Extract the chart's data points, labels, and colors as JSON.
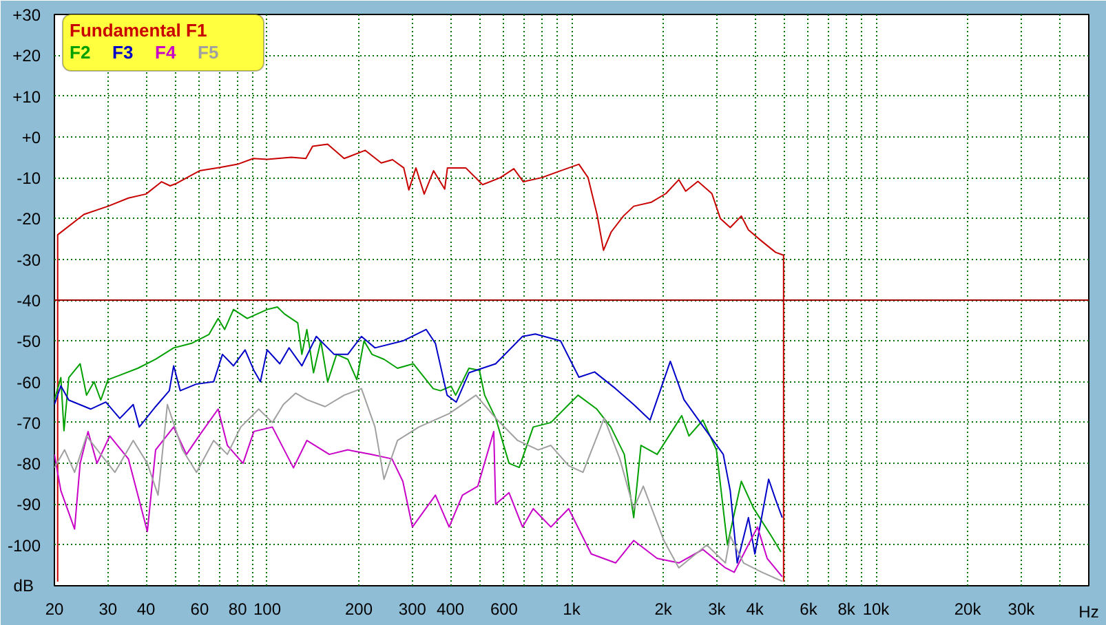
{
  "chart_data": {
    "type": "line",
    "xlabel": "Hz",
    "ylabel": "dB",
    "log": "x",
    "grid": true,
    "legend": "top left",
    "xlim": [
      20,
      50000
    ],
    "ylim": [
      -110,
      30
    ],
    "xticks": [
      20,
      30,
      40,
      {
        "value": 50,
        "label": null
      },
      60,
      {
        "value": 70,
        "label": null
      },
      80,
      {
        "value": 90,
        "label": null
      },
      100,
      200,
      300,
      400,
      {
        "value": 500,
        "label": null
      },
      600,
      {
        "value": 700,
        "label": null
      },
      {
        "value": 800,
        "label": null
      },
      {
        "value": 900,
        "label": null
      },
      {
        "value": 1000,
        "label": "1k"
      },
      {
        "value": 2000,
        "label": "2k"
      },
      {
        "value": 3000,
        "label": "3k"
      },
      {
        "value": 4000,
        "label": "4k"
      },
      {
        "value": 5000,
        "label": null
      },
      {
        "value": 6000,
        "label": "6k"
      },
      {
        "value": 7000,
        "label": null
      },
      {
        "value": 8000,
        "label": "8k"
      },
      {
        "value": 9000,
        "label": null
      },
      {
        "value": 10000,
        "label": "10k"
      },
      {
        "value": 20000,
        "label": "20k"
      },
      {
        "value": 30000,
        "label": "30k"
      },
      {
        "value": 40000,
        "label": null
      }
    ],
    "yticks": [
      {
        "value": 30,
        "label": "+30"
      },
      {
        "value": 20,
        "label": "+20"
      },
      {
        "value": 10,
        "label": "+10"
      },
      {
        "value": 0,
        "label": "+0"
      },
      -10,
      -20,
      -30,
      -40,
      -50,
      -60,
      -70,
      -80,
      -90,
      -100
    ],
    "ref_lines": [
      {
        "axis": "y",
        "value": -40,
        "label": null,
        "color": "#a00000"
      }
    ],
    "series": [
      {
        "name": "Fundamental F1",
        "color": "#c80000",
        "x": [
          20.5,
          20.5,
          25,
          30,
          35,
          40,
          45,
          48,
          50,
          60,
          70,
          80,
          90,
          100,
          120,
          134,
          141,
          158,
          179,
          210,
          237,
          258,
          281,
          292,
          308,
          328,
          352,
          383,
          391,
          449,
          510,
          583,
          646,
          694,
          797,
          920,
          1057,
          1133,
          1212,
          1273,
          1349,
          1480,
          1600,
          1830,
          2040,
          2250,
          2370,
          2600,
          2890,
          3080,
          3320,
          3610,
          3810,
          4220,
          4680,
          4970,
          4970
        ],
        "values": [
          -109,
          -24,
          -19,
          -17,
          -15,
          -14,
          -11,
          -12,
          -11.5,
          -8.3,
          -7.5,
          -6.7,
          -5.3,
          -5.5,
          -5,
          -5.3,
          -2.3,
          -1.8,
          -5.3,
          -3.3,
          -6.4,
          -5.6,
          -7.6,
          -13,
          -7.6,
          -14,
          -8.3,
          -12.8,
          -7.6,
          -7.6,
          -11.7,
          -10,
          -7.8,
          -11,
          -10,
          -8.3,
          -6.7,
          -10,
          -19,
          -27.8,
          -23.3,
          -19.4,
          -17,
          -16,
          -13.9,
          -10.5,
          -13.3,
          -10.9,
          -13.9,
          -20,
          -22.2,
          -19.4,
          -22.8,
          -25.6,
          -28.3,
          -29,
          -109
        ]
      },
      {
        "name": "F2",
        "color": "#00a000",
        "x": [
          20,
          21,
          21.5,
          22.3,
          24.3,
          25.5,
          27,
          28.4,
          30,
          32.8,
          37.6,
          43,
          49.3,
          56.4,
          64.4,
          69,
          72.5,
          77.5,
          86,
          100,
          108,
          114,
          126,
          130,
          135,
          142,
          150,
          158,
          169,
          184,
          197,
          208,
          221,
          242,
          268,
          302,
          351,
          371,
          402,
          416,
          460,
          498,
          518,
          563,
          623,
          673,
          748,
          855,
          978,
          1050,
          1210,
          1345,
          1490,
          1600,
          1690,
          1910,
          2180,
          2300,
          2430,
          2700,
          2990,
          3250,
          3610,
          3960,
          4530,
          4870
        ],
        "values": [
          -64.5,
          -59,
          -72,
          -59,
          -55.6,
          -63.3,
          -60,
          -64.5,
          -59.5,
          -58.4,
          -56.7,
          -54.5,
          -51.7,
          -50.6,
          -48.4,
          -44.5,
          -47.2,
          -42.3,
          -44.5,
          -42.3,
          -41.7,
          -43.4,
          -45.6,
          -53.3,
          -47.2,
          -57.8,
          -50,
          -60,
          -53.3,
          -54.5,
          -59.5,
          -50,
          -53.3,
          -54.5,
          -56.7,
          -55.6,
          -61.7,
          -62.2,
          -61.1,
          -63.3,
          -56.7,
          -57.2,
          -63.3,
          -68.9,
          -80,
          -81,
          -71.1,
          -70,
          -65.6,
          -63.3,
          -66.7,
          -71.1,
          -77.8,
          -93.3,
          -75.6,
          -77.8,
          -71.1,
          -68.3,
          -73.3,
          -69.4,
          -76.7,
          -100,
          -84.4,
          -91,
          -97.8,
          -101.7
        ]
      },
      {
        "name": "F3",
        "color": "#0000c8",
        "x": [
          20,
          21,
          22.3,
          26.3,
          29.5,
          32.8,
          36.3,
          38,
          43,
          47.7,
          49.3,
          51.8,
          58.4,
          66.7,
          71.3,
          77.5,
          84.6,
          90.4,
          95,
          100,
          110,
          118,
          130,
          145,
          166,
          184,
          204,
          226,
          279,
          333,
          357,
          390,
          418,
          460,
          563,
          690,
          760,
          920,
          1057,
          1190,
          1395,
          1600,
          1810,
          2110,
          2340,
          2780,
          3150,
          3320,
          3500,
          3810,
          4000,
          4440,
          4680,
          4920
        ],
        "values": [
          -65.6,
          -61,
          -64.5,
          -66.7,
          -65,
          -69,
          -65.6,
          -71.1,
          -66.1,
          -62.2,
          -56.1,
          -62.2,
          -60.6,
          -60,
          -53.3,
          -56.1,
          -52.2,
          -57.2,
          -60,
          -52.2,
          -55.6,
          -51.7,
          -56.1,
          -48.9,
          -53.3,
          -53.3,
          -48.9,
          -51.7,
          -50,
          -47.2,
          -50.6,
          -63.3,
          -65,
          -57.8,
          -55.6,
          -48.9,
          -48.3,
          -50,
          -58.9,
          -57.6,
          -61.7,
          -65.6,
          -69.4,
          -55,
          -64.4,
          -72.2,
          -77.8,
          -86.7,
          -104.4,
          -93.3,
          -102.2,
          -83.9,
          -88.9,
          -93.3
        ]
      },
      {
        "name": "F4",
        "color": "#c800c8",
        "x": [
          20,
          21,
          23.3,
          24.3,
          25.8,
          27.6,
          30.4,
          35,
          40.4,
          43,
          49.3,
          54.3,
          59.7,
          69,
          74,
          83.3,
          90.4,
          104,
          122,
          135,
          160,
          184,
          219,
          257,
          279,
          300,
          357,
          396,
          438,
          492,
          555,
          563,
          623,
          690,
          748,
          855,
          978,
          1160,
          1395,
          1600,
          1910,
          2250,
          2700,
          3200,
          3420,
          4080,
          4390,
          4920
        ],
        "values": [
          -77.8,
          -86.7,
          -96.1,
          -80,
          -72.2,
          -80,
          -73.3,
          -78.9,
          -96.7,
          -76.7,
          -71.1,
          -77.8,
          -73.3,
          -66.7,
          -75.6,
          -80,
          -72.2,
          -71.1,
          -81.1,
          -74.4,
          -77.8,
          -76.7,
          -77.8,
          -78.9,
          -84.4,
          -95.6,
          -87.8,
          -95.6,
          -87.8,
          -85.6,
          -72.2,
          -90,
          -87.2,
          -95.6,
          -91.1,
          -95.6,
          -91.1,
          -102.2,
          -104.4,
          -98.9,
          -103.3,
          -104.4,
          -101.1,
          -105.6,
          -106.7,
          -95.6,
          -103.3,
          -107.8
        ]
      },
      {
        "name": "F5",
        "color": "#a0a0a0",
        "x": [
          20,
          21.6,
          23.3,
          25.5,
          28.4,
          31.6,
          36.3,
          40.4,
          43.8,
          47,
          52.7,
          58.6,
          66.7,
          74,
          81.9,
          93.8,
          104,
          113,
          124,
          135,
          155,
          179,
          204,
          226,
          242,
          268,
          315,
          396,
          485,
          563,
          665,
          777,
          855,
          978,
          1090,
          1280,
          1440,
          1600,
          1720,
          2010,
          2250,
          2780,
          3200,
          3320,
          3670,
          4220,
          4920
        ],
        "values": [
          -81.1,
          -76.7,
          -82.2,
          -73.3,
          -77.8,
          -82.2,
          -74.4,
          -80,
          -87.8,
          -65.6,
          -76.7,
          -82.2,
          -74.4,
          -77.8,
          -71.1,
          -66.7,
          -70,
          -65.6,
          -62.8,
          -64.4,
          -66.1,
          -63.3,
          -61.7,
          -71.1,
          -83.9,
          -74.4,
          -71.1,
          -67.8,
          -63.3,
          -68.9,
          -74.4,
          -76.7,
          -75.6,
          -80.6,
          -82.2,
          -68.9,
          -78.9,
          -91.1,
          -85.6,
          -98.9,
          -105.6,
          -100,
          -104.4,
          -97.8,
          -104.4,
          -106.7,
          -108.9
        ]
      }
    ]
  }
}
